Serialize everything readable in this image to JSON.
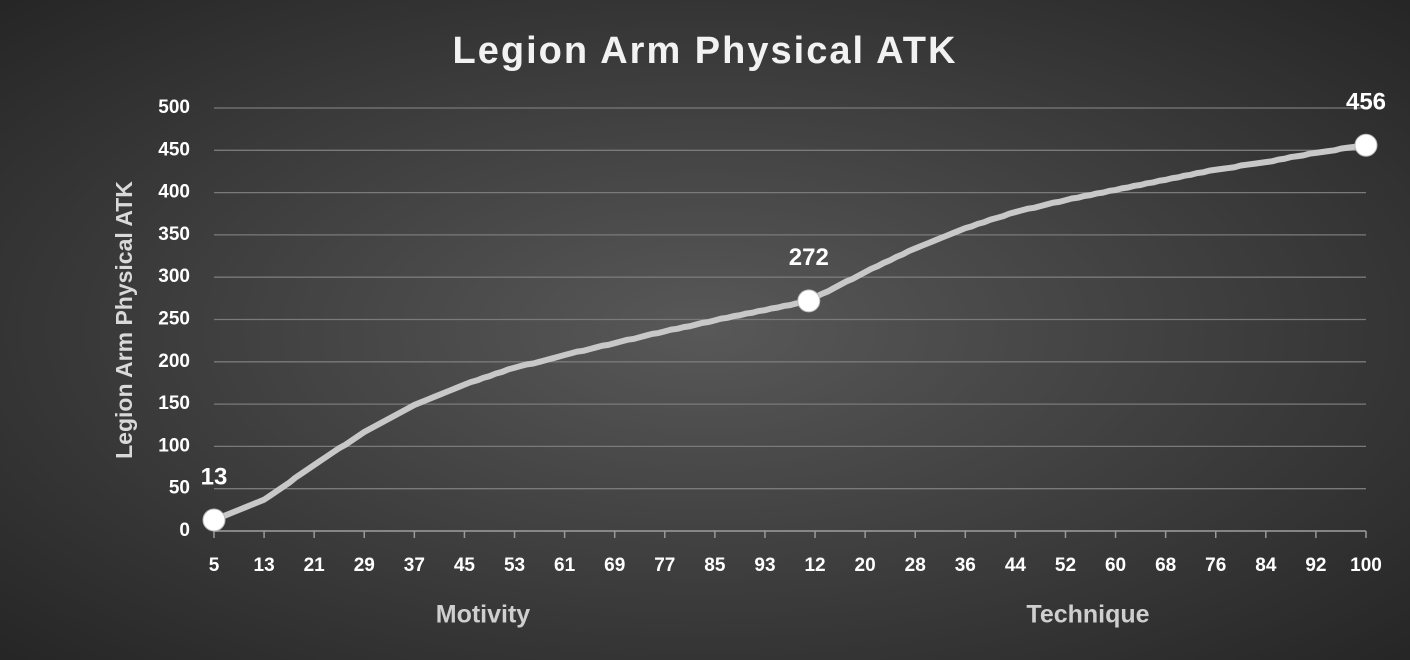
{
  "chart_data": {
    "type": "line",
    "title": "Legion Arm Physical ATK",
    "ylabel": "Legion Arm Physical ATK",
    "x_group_labels": [
      "Motivity",
      "Technique"
    ],
    "categories": [
      5,
      null,
      null,
      null,
      null,
      null,
      null,
      null,
      13,
      null,
      null,
      null,
      null,
      null,
      null,
      null,
      21,
      null,
      null,
      null,
      null,
      null,
      null,
      null,
      29,
      null,
      null,
      null,
      null,
      null,
      null,
      null,
      37,
      null,
      null,
      null,
      null,
      null,
      null,
      null,
      45,
      null,
      null,
      null,
      null,
      null,
      null,
      null,
      53,
      null,
      null,
      null,
      null,
      null,
      null,
      null,
      61,
      null,
      null,
      null,
      null,
      null,
      null,
      null,
      69,
      null,
      null,
      null,
      null,
      null,
      null,
      null,
      77,
      null,
      null,
      null,
      null,
      null,
      null,
      null,
      85,
      null,
      null,
      null,
      null,
      null,
      null,
      null,
      93,
      null,
      null,
      null,
      null,
      null,
      null,
      null,
      12,
      null,
      null,
      null,
      null,
      null,
      null,
      null,
      20,
      null,
      null,
      null,
      null,
      null,
      null,
      null,
      28,
      null,
      null,
      null,
      null,
      null,
      null,
      null,
      36,
      null,
      null,
      null,
      null,
      null,
      null,
      null,
      44,
      null,
      null,
      null,
      null,
      null,
      null,
      null,
      52,
      null,
      null,
      null,
      null,
      null,
      null,
      null,
      60,
      null,
      null,
      null,
      null,
      null,
      null,
      null,
      68,
      null,
      null,
      null,
      null,
      null,
      null,
      null,
      76,
      null,
      null,
      null,
      null,
      null,
      null,
      null,
      84,
      null,
      null,
      null,
      null,
      null,
      null,
      null,
      92,
      null,
      null,
      null,
      null,
      null,
      null,
      null,
      100
    ],
    "values": [
      13,
      16,
      19,
      22,
      25,
      28,
      31,
      34,
      37,
      42,
      47,
      52,
      57,
      63,
      68,
      73,
      78,
      83,
      88,
      93,
      98,
      102,
      107,
      112,
      117,
      121,
      125,
      129,
      133,
      137,
      141,
      145,
      149,
      152,
      155,
      158,
      161,
      164,
      167,
      170,
      173,
      176,
      178,
      181,
      183,
      186,
      188,
      191,
      193,
      195,
      197,
      198,
      200,
      202,
      204,
      206,
      208,
      210,
      212,
      213,
      215,
      217,
      219,
      220,
      222,
      224,
      226,
      227,
      229,
      231,
      233,
      234,
      236,
      238,
      239,
      241,
      242,
      244,
      246,
      247,
      249,
      251,
      252,
      254,
      255,
      257,
      258,
      260,
      261,
      263,
      264,
      266,
      267,
      269,
      270,
      272,
      276,
      280,
      283,
      287,
      291,
      295,
      298,
      302,
      306,
      310,
      313,
      317,
      320,
      324,
      327,
      331,
      334,
      337,
      340,
      343,
      346,
      349,
      352,
      355,
      358,
      360,
      363,
      365,
      368,
      370,
      372,
      375,
      377,
      379,
      381,
      382,
      384,
      386,
      388,
      389,
      391,
      393,
      394,
      396,
      397,
      399,
      400,
      402,
      403,
      405,
      406,
      408,
      409,
      411,
      412,
      414,
      415,
      417,
      418,
      420,
      421,
      423,
      424,
      426,
      427,
      428,
      429,
      430,
      432,
      433,
      434,
      435,
      436,
      437,
      439,
      440,
      442,
      443,
      444,
      446,
      447,
      448,
      449,
      450,
      452,
      453,
      454,
      455,
      456
    ],
    "marked_points": [
      0,
      95,
      184
    ],
    "color": "#c8c8c8",
    "ylim": [
      0,
      500
    ],
    "yticks": [
      0,
      50,
      100,
      150,
      200,
      250,
      300,
      350,
      400,
      450,
      500
    ],
    "grid": true
  }
}
